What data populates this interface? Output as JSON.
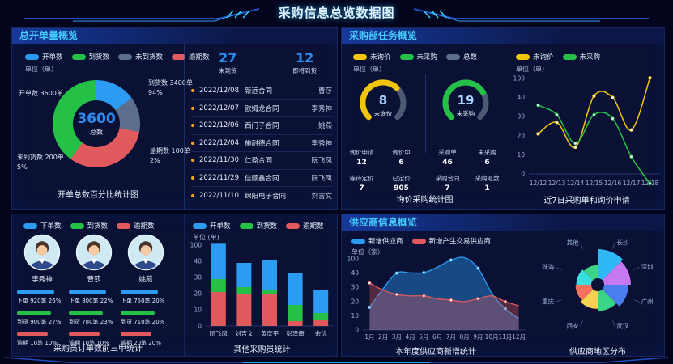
{
  "page": {
    "title": "采购信息总览数据图"
  },
  "panels": {
    "order_overview": {
      "header": "总开单量概览",
      "arrivals": {
        "not_arrived_value": "27",
        "not_arrived_label": "未到货",
        "arriving_value": "12",
        "arriving_label": "即将到货",
        "rows": [
          {
            "date": "2022/12/08",
            "contract": "新远合同",
            "person": "曹莎"
          },
          {
            "date": "2022/12/07",
            "contract": "欧姆龙合同",
            "person": "李秀神"
          },
          {
            "date": "2022/12/06",
            "contract": "西门子合同",
            "person": "姚燕"
          },
          {
            "date": "2022/12/04",
            "contract": "施耐德合同",
            "person": "李秀神"
          },
          {
            "date": "2022/11/30",
            "contract": "仁盈合同",
            "person": "阮飞凤"
          },
          {
            "date": "2022/11/29",
            "contract": "佳顺鑫合同",
            "person": "阮飞凤"
          },
          {
            "date": "2022/11/10",
            "contract": "绵阳电子合同",
            "person": "刘吉文"
          }
        ]
      }
    },
    "task_overview": {
      "header": "采购部任务概览"
    },
    "supplier_overview": {
      "header": "供应商信息概览"
    }
  },
  "chart_data": [
    {
      "type": "pie",
      "variant": "donut",
      "title": "开单总数百分比统计图",
      "unit": "单位（单）",
      "center_value": "3600",
      "center_label": "总数",
      "legend": [
        {
          "label": "开单数",
          "color": "#2b9cf2"
        },
        {
          "label": "到货数",
          "color": "#25c147"
        },
        {
          "label": "未到货数",
          "color": "#5b6e8d"
        },
        {
          "label": "逾期数",
          "color": "#e05a5d"
        }
      ],
      "slices": [
        {
          "name": "到货数",
          "display": "到货数 3400单",
          "percent_text": "94%",
          "value": 3400,
          "angle_pct": 15,
          "color": "#2b9cf2"
        },
        {
          "name": "逾期数",
          "display": "逾期数 100单",
          "percent_text": "2%",
          "value": 100,
          "angle_pct": 13,
          "color": "#5b6e8d"
        },
        {
          "name": "未到货数",
          "display": "未到货数 200单",
          "percent_text": "5%",
          "value": 200,
          "angle_pct": 32,
          "color": "#e05a5d"
        },
        {
          "name": "开单数",
          "display": "开单数 3600单",
          "percent_text": "",
          "value": 3600,
          "angle_pct": 40,
          "color": "#25c147"
        }
      ]
    },
    {
      "type": "gauge",
      "title": "询价采购统计图",
      "unit": "单位（单）",
      "legend": [
        {
          "label": "未询价",
          "color": "#f2c50a"
        },
        {
          "label": "未采购",
          "color": "#25c147"
        },
        {
          "label": "总数",
          "color": "#5b6e8d"
        }
      ],
      "gauges": [
        {
          "value": "8",
          "label": "未询价",
          "color": "#f2c50a",
          "percent": 66
        },
        {
          "value": "19",
          "label": "未采购",
          "color": "#25c147",
          "percent": 72
        }
      ],
      "stats_left": [
        {
          "label": "询价申请",
          "value": "12"
        },
        {
          "label": "询价中",
          "value": "6"
        },
        {
          "label": "等待定价",
          "value": "7"
        },
        {
          "label": "已定价",
          "value": "905"
        }
      ],
      "stats_right": [
        {
          "label": "采购单",
          "value": "46"
        },
        {
          "label": "未采购",
          "value": "6"
        },
        {
          "label": "采购合同",
          "value": "7"
        },
        {
          "label": "采购退款",
          "value": "1"
        }
      ]
    },
    {
      "type": "line",
      "title": "近7日采购单和询价申请",
      "unit": "单位（单）",
      "legend": [
        {
          "label": "未询价",
          "color": "#f2c50a"
        },
        {
          "label": "未采购",
          "color": "#25c147"
        }
      ],
      "x": [
        "12/12",
        "12/13",
        "12/14",
        "12/15",
        "12/16",
        "12/17",
        "12/18"
      ],
      "yticks": [
        0,
        10,
        20,
        30,
        40,
        100
      ],
      "series": [
        {
          "name": "未询价",
          "color": "#f2c50a",
          "values": [
            21,
            27,
            14,
            45,
            40,
            23,
            102
          ]
        },
        {
          "name": "未采购",
          "color": "#25c147",
          "values": [
            36,
            31,
            16,
            31,
            29,
            9,
            -5
          ]
        }
      ]
    },
    {
      "type": "table",
      "title": "采购员订单数前三甲统计",
      "legend": [
        {
          "label": "下单数",
          "color": "#2b9cf2"
        },
        {
          "label": "到货数",
          "color": "#25c147"
        },
        {
          "label": "逾期数",
          "color": "#e05a5d"
        }
      ],
      "buyers": [
        {
          "name": "李秀神",
          "orders": "下单 920笔 26%",
          "arrived": "到货 900笔 27%",
          "overdue": "逾期 10笔 10%"
        },
        {
          "name": "曹莎",
          "orders": "下单 800笔 22%",
          "arrived": "到货 780笔 23%",
          "overdue": "逾期 10笔 10%"
        },
        {
          "name": "姚燕",
          "orders": "下单 750笔 20%",
          "arrived": "到货 710笔 20%",
          "overdue": "逾期 20笔 20%"
        }
      ]
    },
    {
      "type": "bar",
      "stacked": true,
      "title": "其他采购员统计",
      "unit": "单位 (单)",
      "legend": [
        {
          "label": "开单数",
          "color": "#2b9cf2"
        },
        {
          "label": "到货数",
          "color": "#25c147"
        },
        {
          "label": "逾期数",
          "color": "#e05a5d"
        }
      ],
      "categories": [
        "阮飞凤",
        "刘吉文",
        "黄庆平",
        "彭泽南",
        "余优"
      ],
      "yticks": [
        0,
        10,
        20,
        30,
        40,
        100
      ],
      "series": [
        {
          "name": "逾期数",
          "color": "#e05a5d",
          "values": [
            21,
            20,
            20,
            3,
            4
          ]
        },
        {
          "name": "到货数",
          "color": "#25c147",
          "values": [
            8,
            4,
            2,
            10,
            4
          ]
        },
        {
          "name": "开单数",
          "color": "#2b9cf2",
          "values": [
            76,
            15,
            22,
            20,
            14
          ]
        }
      ]
    },
    {
      "type": "area",
      "title": "本年度供应商新增统计",
      "unit": "单位（家）",
      "legend": [
        {
          "label": "新增供应商",
          "color": "#2b9cf2"
        },
        {
          "label": "新增产生交易供应商",
          "color": "#e05a5d"
        }
      ],
      "x": [
        "1月",
        "2月",
        "3月",
        "4月",
        "5月",
        "6月",
        "7月",
        "8月",
        "9月",
        "10月",
        "11月",
        "12月"
      ],
      "yticks": [
        0,
        10,
        20,
        30,
        40,
        100
      ],
      "series": [
        {
          "name": "新增供应商",
          "color": "#2b9cf2",
          "values": [
            16,
            29,
            40,
            41,
            42,
            65,
            95,
            105,
            60,
            26,
            15,
            8
          ]
        },
        {
          "name": "新增产生交易供应商",
          "color": "#e05a5d",
          "values": [
            33,
            28,
            25,
            24,
            24,
            22,
            21,
            20,
            22,
            24,
            20,
            17
          ]
        }
      ]
    },
    {
      "type": "pie",
      "variant": "rose",
      "title": "供应商地区分布",
      "slices": [
        {
          "label": "长沙",
          "color": "#2fb8f5",
          "radius": 1.0
        },
        {
          "label": "深圳",
          "color": "#c678f0",
          "radius": 0.93
        },
        {
          "label": "广州",
          "color": "#4a7df0",
          "radius": 0.86
        },
        {
          "label": "武汉",
          "color": "#3bd487",
          "radius": 0.74
        },
        {
          "label": "西安",
          "color": "#f4d152",
          "radius": 0.68
        },
        {
          "label": "重庆",
          "color": "#f5705f",
          "radius": 0.62
        },
        {
          "label": "珠海",
          "color": "#39dede",
          "radius": 0.6
        },
        {
          "label": "其他",
          "color": "#3bd487",
          "radius": 0.55
        }
      ]
    }
  ]
}
